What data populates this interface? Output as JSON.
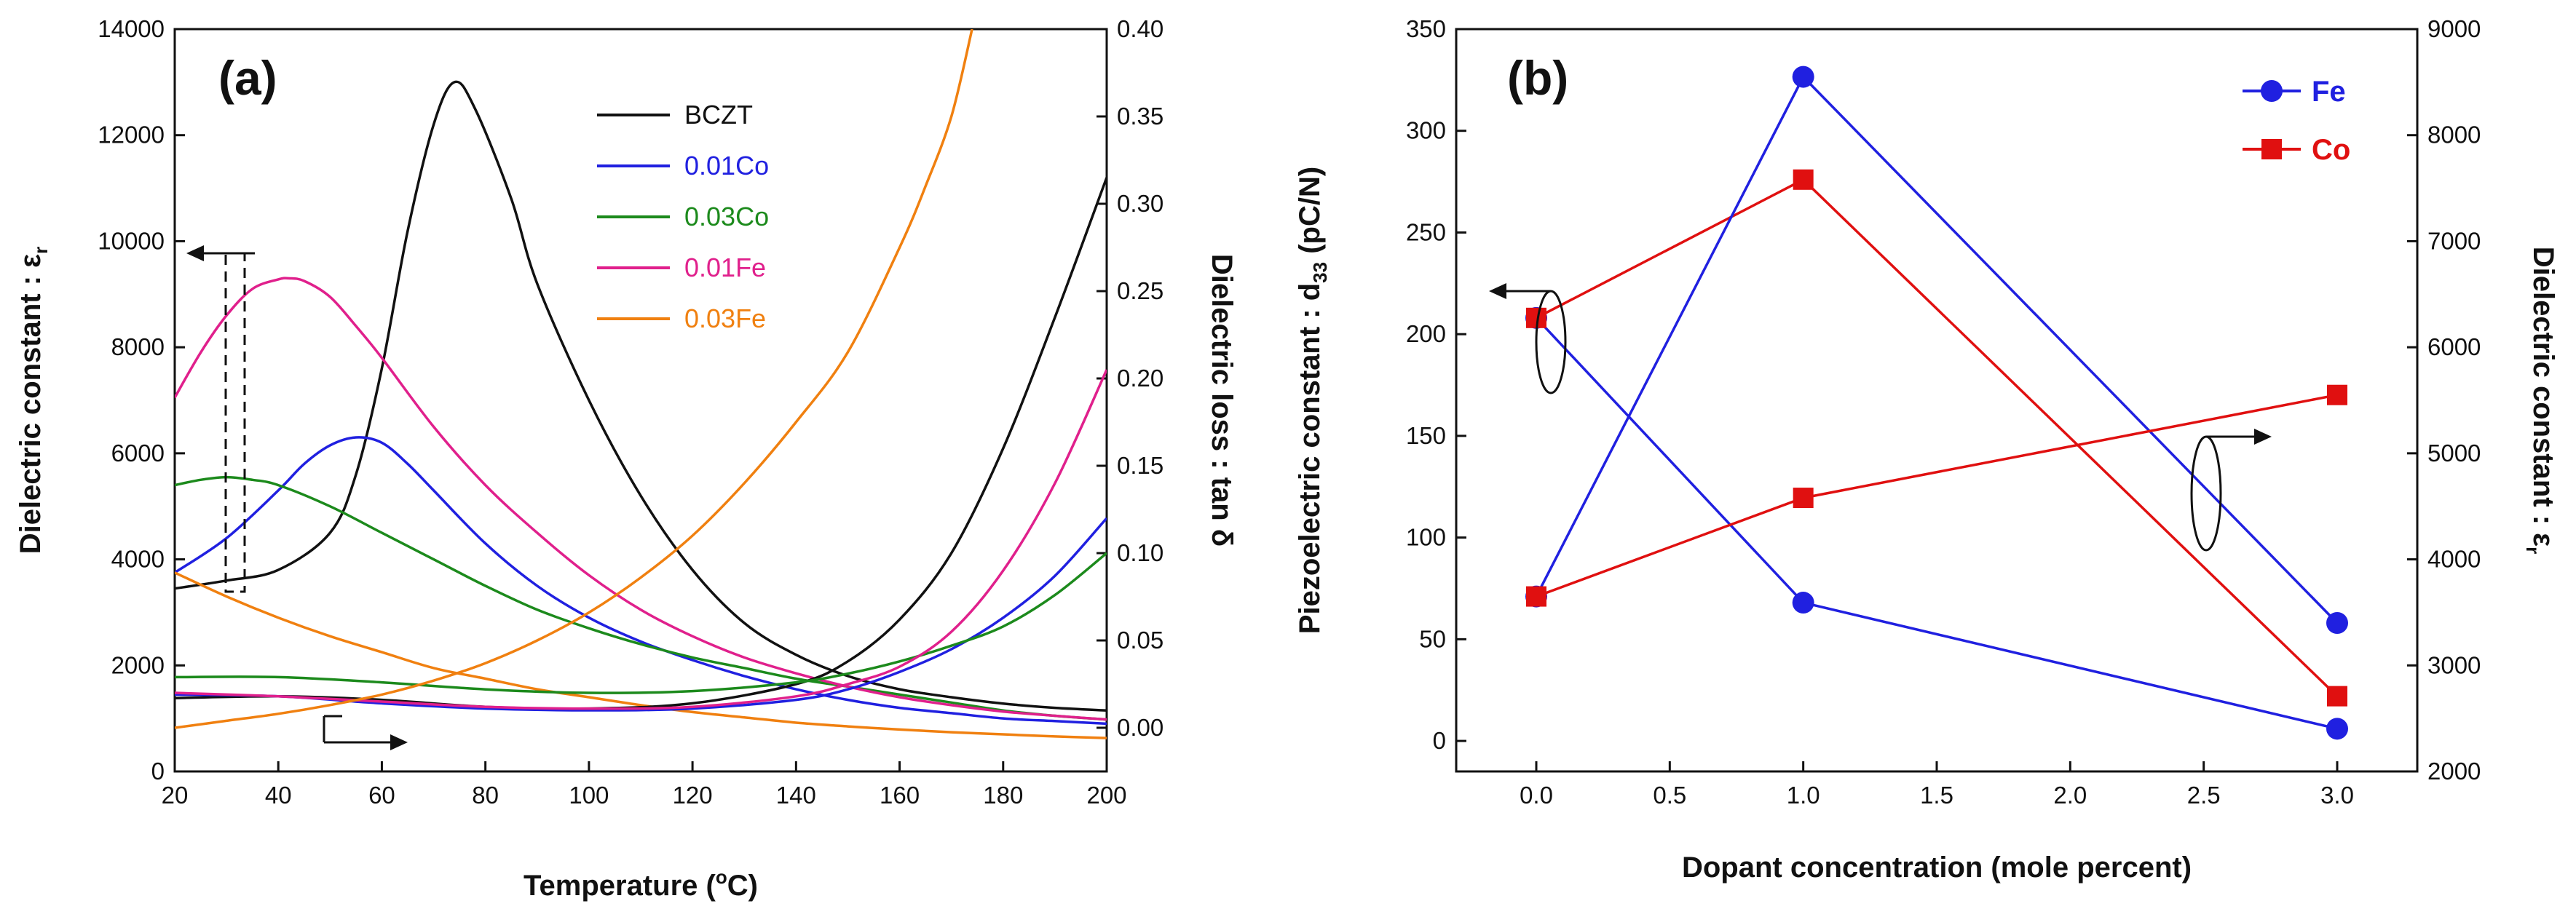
{
  "chart_data": [
    {
      "type": "line",
      "panel_label": "(a)",
      "xlabel": "Temperature",
      "xlabel_unit": "(",
      "xlabel_unit_sup": "o",
      "xlabel_unit_end": "C)",
      "ylabel_left": "Dielectric constant : ε",
      "ylabel_left_sub": "r",
      "ylabel_right": "Dielectric loss : tan δ",
      "xlim": [
        20,
        200
      ],
      "ylim_left": [
        0,
        14000
      ],
      "ylim_right": [
        -0.025,
        0.4
      ],
      "x_ticks": [
        "20",
        "40",
        "60",
        "80",
        "100",
        "120",
        "140",
        "160",
        "180",
        "200"
      ],
      "y_left_ticks": [
        "0",
        "2000",
        "4000",
        "6000",
        "8000",
        "10000",
        "12000",
        "14000"
      ],
      "y_right_ticks": [
        "0.00",
        "0.05",
        "0.10",
        "0.15",
        "0.20",
        "0.25",
        "0.30",
        "0.35",
        "0.40"
      ],
      "series": [
        {
          "name": "BCZT",
          "color": "#111111",
          "axis": "left",
          "x": [
            20,
            30,
            40,
            50,
            55,
            60,
            65,
            70,
            74,
            78,
            85,
            90,
            100,
            110,
            120,
            130,
            140,
            150,
            160,
            170,
            180,
            190,
            200
          ],
          "y": [
            3450,
            3600,
            3800,
            4500,
            5600,
            7600,
            10200,
            12200,
            13000,
            12500,
            10800,
            9200,
            7000,
            5200,
            3800,
            2800,
            2200,
            1800,
            1550,
            1400,
            1280,
            1200,
            1150
          ]
        },
        {
          "name": "0.01Co",
          "color": "#2020e0",
          "axis": "left",
          "x": [
            20,
            30,
            40,
            45,
            50,
            55,
            60,
            65,
            70,
            80,
            90,
            100,
            110,
            120,
            130,
            140,
            150,
            160,
            170,
            180,
            190,
            200
          ],
          "y": [
            3750,
            4400,
            5300,
            5800,
            6150,
            6300,
            6200,
            5800,
            5300,
            4300,
            3500,
            2900,
            2450,
            2100,
            1800,
            1550,
            1350,
            1200,
            1100,
            1000,
            950,
            900
          ]
        },
        {
          "name": "0.03Co",
          "color": "#1c8a1c",
          "axis": "left",
          "x": [
            20,
            25,
            30,
            35,
            40,
            50,
            60,
            70,
            80,
            90,
            100,
            110,
            120,
            130,
            140,
            150,
            160,
            170,
            180,
            190,
            200
          ],
          "y": [
            5400,
            5500,
            5550,
            5500,
            5400,
            5000,
            4500,
            4000,
            3500,
            3050,
            2700,
            2400,
            2150,
            1950,
            1750,
            1600,
            1450,
            1300,
            1150,
            1050,
            980
          ]
        },
        {
          "name": "0.01Fe",
          "color": "#e0208c",
          "axis": "left",
          "x": [
            20,
            25,
            30,
            35,
            40,
            42,
            45,
            50,
            55,
            60,
            70,
            80,
            90,
            100,
            110,
            120,
            130,
            140,
            150,
            160,
            170,
            180,
            190,
            200
          ],
          "y": [
            7050,
            7900,
            8600,
            9100,
            9280,
            9300,
            9250,
            8950,
            8400,
            7800,
            6500,
            5400,
            4500,
            3700,
            3050,
            2550,
            2150,
            1850,
            1600,
            1400,
            1250,
            1130,
            1050,
            980
          ]
        },
        {
          "name": "0.03Fe",
          "color": "#f08010",
          "axis": "left",
          "x": [
            20,
            30,
            40,
            50,
            60,
            70,
            80,
            90,
            100,
            110,
            120,
            130,
            140,
            150,
            160,
            170,
            180,
            190,
            200
          ],
          "y": [
            3750,
            3300,
            2900,
            2550,
            2250,
            1950,
            1750,
            1550,
            1400,
            1250,
            1120,
            1020,
            920,
            850,
            790,
            740,
            700,
            660,
            630
          ]
        },
        {
          "name": "BCZT loss",
          "color": "#111111",
          "axis": "right",
          "x": [
            20,
            40,
            60,
            80,
            100,
            120,
            140,
            150,
            160,
            170,
            180,
            190,
            200
          ],
          "y": [
            0.017,
            0.018,
            0.016,
            0.012,
            0.011,
            0.014,
            0.025,
            0.038,
            0.062,
            0.1,
            0.16,
            0.235,
            0.315
          ]
        },
        {
          "name": "0.01Co loss",
          "color": "#2020e0",
          "axis": "right",
          "x": [
            20,
            40,
            60,
            80,
            100,
            120,
            140,
            150,
            160,
            170,
            180,
            190,
            200
          ],
          "y": [
            0.019,
            0.018,
            0.014,
            0.011,
            0.01,
            0.011,
            0.016,
            0.022,
            0.032,
            0.045,
            0.063,
            0.087,
            0.12
          ]
        },
        {
          "name": "0.03Co loss",
          "color": "#1c8a1c",
          "axis": "right",
          "x": [
            20,
            40,
            60,
            80,
            100,
            120,
            140,
            150,
            160,
            170,
            180,
            190,
            200
          ],
          "y": [
            0.029,
            0.029,
            0.026,
            0.022,
            0.02,
            0.021,
            0.026,
            0.031,
            0.038,
            0.047,
            0.058,
            0.076,
            0.1
          ]
        },
        {
          "name": "0.01Fe loss",
          "color": "#e0208c",
          "axis": "right",
          "x": [
            20,
            40,
            60,
            80,
            100,
            120,
            140,
            150,
            160,
            170,
            180,
            190,
            200
          ],
          "y": [
            0.02,
            0.018,
            0.015,
            0.012,
            0.011,
            0.012,
            0.018,
            0.025,
            0.035,
            0.055,
            0.09,
            0.14,
            0.205
          ]
        },
        {
          "name": "0.03Fe loss",
          "color": "#f08010",
          "axis": "right",
          "x": [
            20,
            30,
            40,
            50,
            60,
            70,
            80,
            90,
            100,
            110,
            120,
            130,
            140,
            150,
            160,
            165,
            170,
            174
          ],
          "y": [
            0.0,
            0.004,
            0.008,
            0.013,
            0.019,
            0.027,
            0.037,
            0.05,
            0.066,
            0.086,
            0.11,
            0.14,
            0.175,
            0.215,
            0.275,
            0.31,
            0.35,
            0.4
          ]
        }
      ],
      "legend": [
        "BCZT",
        "0.01Co",
        "0.03Co",
        "0.01Fe",
        "0.03Fe"
      ],
      "legend_colors": [
        "#111111",
        "#2020e0",
        "#1c8a1c",
        "#e0208c",
        "#f08010"
      ],
      "legend_position": "top-right",
      "annotations": [
        "left arrow: curves read on left axis",
        "right arrow: curves read on right axis"
      ]
    },
    {
      "type": "line",
      "panel_label": "(b)",
      "xlabel": "Dopant concentration (mole percent)",
      "ylabel_left": "Piezoelectric constant : d",
      "ylabel_left_sub": "33",
      "ylabel_left_unit": " (pC/N)",
      "ylabel_right": "Dielectric constant : ε",
      "ylabel_right_sub": "r",
      "xlim": [
        -0.3,
        3.3
      ],
      "ylim_left": [
        -15,
        350
      ],
      "ylim_right": [
        2000,
        9000
      ],
      "x_ticks": [
        "0.0",
        "0.5",
        "1.0",
        "1.5",
        "2.0",
        "2.5",
        "3.0"
      ],
      "y_left_ticks": [
        "0",
        "50",
        "100",
        "150",
        "200",
        "250",
        "300",
        "350"
      ],
      "y_right_ticks": [
        "2000",
        "3000",
        "4000",
        "5000",
        "6000",
        "7000",
        "8000",
        "9000"
      ],
      "x": [
        0,
        1,
        3
      ],
      "series": [
        {
          "name": "Fe",
          "color": "#2020e0",
          "marker": "circle",
          "axis": "left",
          "values": [
            208,
            68,
            6
          ]
        },
        {
          "name": "Co",
          "color": "#e01010",
          "marker": "square",
          "axis": "left",
          "values": [
            208,
            276,
            22
          ]
        },
        {
          "name": "Fe",
          "color": "#2020e0",
          "marker": "circle",
          "axis": "right",
          "values": [
            3650,
            8550,
            3400
          ]
        },
        {
          "name": "Co",
          "color": "#e01010",
          "marker": "square",
          "axis": "right",
          "values": [
            3650,
            4580,
            5550
          ]
        }
      ],
      "legend": [
        "Fe",
        "Co"
      ],
      "legend_colors": [
        "#2020e0",
        "#e01010"
      ],
      "legend_position": "top-right",
      "annotations": [
        "left arrow + ellipse: d33 curves",
        "right arrow + ellipse: dielectric constant curves"
      ]
    }
  ]
}
